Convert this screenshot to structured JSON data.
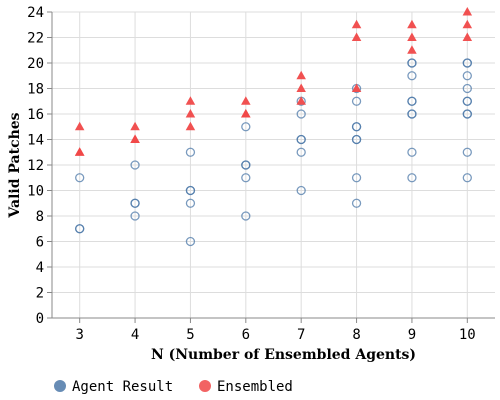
{
  "chart_data": {
    "type": "scatter",
    "title": "",
    "xlabel": "N (Number of Ensembled Agents)",
    "ylabel": "Valid Patches",
    "x_ticks": [
      3,
      4,
      5,
      6,
      7,
      8,
      9,
      10
    ],
    "y_ticks": [
      0,
      2,
      4,
      6,
      8,
      10,
      12,
      14,
      16,
      18,
      20,
      22,
      24
    ],
    "xlim": [
      2.5,
      10.5
    ],
    "ylim": [
      0,
      24
    ],
    "grid": true,
    "legend_position": "bottom-left",
    "series": [
      {
        "name": "Agent Result",
        "marker": "circle",
        "color": "#4c78a8",
        "points": [
          [
            3,
            11
          ],
          [
            3,
            7
          ],
          [
            3,
            7
          ],
          [
            4,
            12
          ],
          [
            4,
            9
          ],
          [
            4,
            9
          ],
          [
            4,
            8
          ],
          [
            5,
            13
          ],
          [
            5,
            10
          ],
          [
            5,
            10
          ],
          [
            5,
            9
          ],
          [
            5,
            6
          ],
          [
            6,
            15
          ],
          [
            6,
            12
          ],
          [
            6,
            12
          ],
          [
            6,
            11
          ],
          [
            6,
            8
          ],
          [
            7,
            17
          ],
          [
            7,
            16
          ],
          [
            7,
            14
          ],
          [
            7,
            14
          ],
          [
            7,
            13
          ],
          [
            7,
            10
          ],
          [
            8,
            18
          ],
          [
            8,
            17
          ],
          [
            8,
            15
          ],
          [
            8,
            15
          ],
          [
            8,
            14
          ],
          [
            8,
            14
          ],
          [
            8,
            11
          ],
          [
            8,
            9
          ],
          [
            9,
            20
          ],
          [
            9,
            20
          ],
          [
            9,
            19
          ],
          [
            9,
            17
          ],
          [
            9,
            17
          ],
          [
            9,
            16
          ],
          [
            9,
            16
          ],
          [
            9,
            13
          ],
          [
            9,
            11
          ],
          [
            10,
            20
          ],
          [
            10,
            20
          ],
          [
            10,
            19
          ],
          [
            10,
            18
          ],
          [
            10,
            17
          ],
          [
            10,
            17
          ],
          [
            10,
            16
          ],
          [
            10,
            16
          ],
          [
            10,
            13
          ],
          [
            10,
            11
          ]
        ]
      },
      {
        "name": "Ensembled",
        "marker": "triangle",
        "color": "#f04848",
        "points": [
          [
            3,
            15
          ],
          [
            3,
            13
          ],
          [
            3,
            13
          ],
          [
            4,
            15
          ],
          [
            4,
            14
          ],
          [
            4,
            14
          ],
          [
            5,
            17
          ],
          [
            5,
            16
          ],
          [
            5,
            15
          ],
          [
            6,
            17
          ],
          [
            6,
            16
          ],
          [
            6,
            16
          ],
          [
            7,
            19
          ],
          [
            7,
            18
          ],
          [
            7,
            17
          ],
          [
            8,
            23
          ],
          [
            8,
            22
          ],
          [
            8,
            18
          ],
          [
            9,
            23
          ],
          [
            9,
            22
          ],
          [
            9,
            21
          ],
          [
            10,
            24
          ],
          [
            10,
            23
          ],
          [
            10,
            22
          ]
        ]
      }
    ]
  }
}
